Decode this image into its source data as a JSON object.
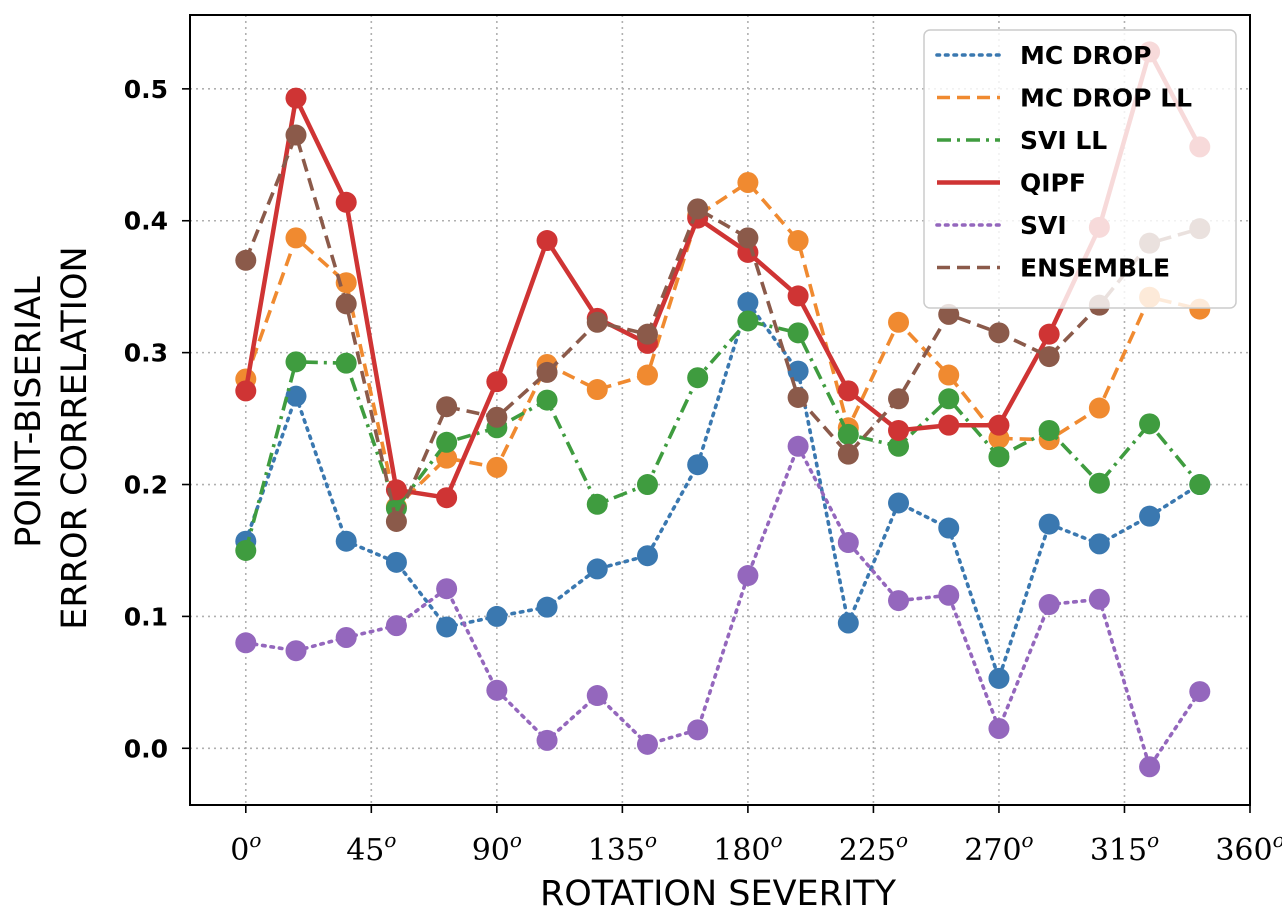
{
  "chart_data": {
    "type": "line",
    "title": "",
    "xlabel": "ROTATION  SEVERITY",
    "ylabel_lines": [
      "POINT-BISERIAL",
      "ERROR  CORRELATION"
    ],
    "xlim": [
      -20,
      360
    ],
    "ylim": [
      -0.043,
      0.556
    ],
    "xticks": [
      {
        "value": 0,
        "label": "0",
        "sup": "o"
      },
      {
        "value": 45,
        "label": "45",
        "sup": "o"
      },
      {
        "value": 90,
        "label": "90",
        "sup": "o"
      },
      {
        "value": 135,
        "label": "135",
        "sup": "o"
      },
      {
        "value": 180,
        "label": "180",
        "sup": "o"
      },
      {
        "value": 225,
        "label": "225",
        "sup": "o"
      },
      {
        "value": 270,
        "label": "270",
        "sup": "o"
      },
      {
        "value": 315,
        "label": "315",
        "sup": "o"
      },
      {
        "value": 360,
        "label": "360",
        "sup": "o"
      }
    ],
    "yticks": [
      {
        "value": 0.0,
        "label": "0.0"
      },
      {
        "value": 0.1,
        "label": "0.1"
      },
      {
        "value": 0.2,
        "label": "0.2"
      },
      {
        "value": 0.3,
        "label": "0.3"
      },
      {
        "value": 0.4,
        "label": "0.4"
      },
      {
        "value": 0.5,
        "label": "0.5"
      }
    ],
    "grid": true,
    "legend_position": "top-right",
    "x": [
      0,
      18,
      36,
      54,
      72,
      90,
      108,
      126,
      144,
      162,
      180,
      198,
      216,
      234,
      252,
      270,
      288,
      306,
      324,
      342
    ],
    "series": [
      {
        "name": "MC DROP",
        "color": "#3a78b0",
        "style": "dotted",
        "values": [
          0.157,
          0.267,
          0.157,
          0.141,
          0.092,
          0.1,
          0.107,
          0.136,
          0.146,
          0.215,
          0.338,
          0.286,
          0.095,
          0.186,
          0.167,
          0.053,
          0.17,
          0.155,
          0.176,
          0.2
        ]
      },
      {
        "name": "MC DROP LL",
        "color": "#f08a30",
        "style": "dashed",
        "values": [
          0.28,
          0.387,
          0.353,
          0.183,
          0.22,
          0.213,
          0.291,
          0.272,
          0.283,
          0.404,
          0.429,
          0.385,
          0.243,
          0.323,
          0.283,
          0.235,
          0.234,
          0.258,
          0.342,
          0.333
        ]
      },
      {
        "name": "SVI LL",
        "color": "#3f9c3f",
        "style": "dashdot",
        "values": [
          0.15,
          0.293,
          0.292,
          0.182,
          0.232,
          0.243,
          0.264,
          0.185,
          0.2,
          0.281,
          0.324,
          0.315,
          0.238,
          0.229,
          0.265,
          0.221,
          0.241,
          0.201,
          0.246,
          0.2
        ]
      },
      {
        "name": "QIPF",
        "color": "#cf3434",
        "style": "solid",
        "values": [
          0.271,
          0.493,
          0.414,
          0.196,
          0.19,
          0.278,
          0.385,
          0.326,
          0.307,
          0.402,
          0.376,
          0.343,
          0.271,
          0.241,
          0.245,
          0.245,
          0.314,
          0.395,
          0.528,
          0.456
        ]
      },
      {
        "name": "SVI",
        "color": "#9467bd",
        "style": "dotted",
        "values": [
          0.08,
          0.074,
          0.084,
          0.093,
          0.121,
          0.044,
          0.006,
          0.04,
          0.003,
          0.014,
          0.131,
          0.229,
          0.156,
          0.112,
          0.116,
          0.015,
          0.109,
          0.113,
          -0.014,
          0.043
        ]
      },
      {
        "name": "ENSEMBLE",
        "color": "#8b5a4a",
        "style": "dashed",
        "values": [
          0.37,
          0.465,
          0.337,
          0.172,
          0.259,
          0.251,
          0.285,
          0.323,
          0.314,
          0.409,
          0.387,
          0.266,
          0.223,
          0.265,
          0.329,
          0.315,
          0.297,
          0.336,
          0.383,
          0.394
        ]
      }
    ]
  }
}
